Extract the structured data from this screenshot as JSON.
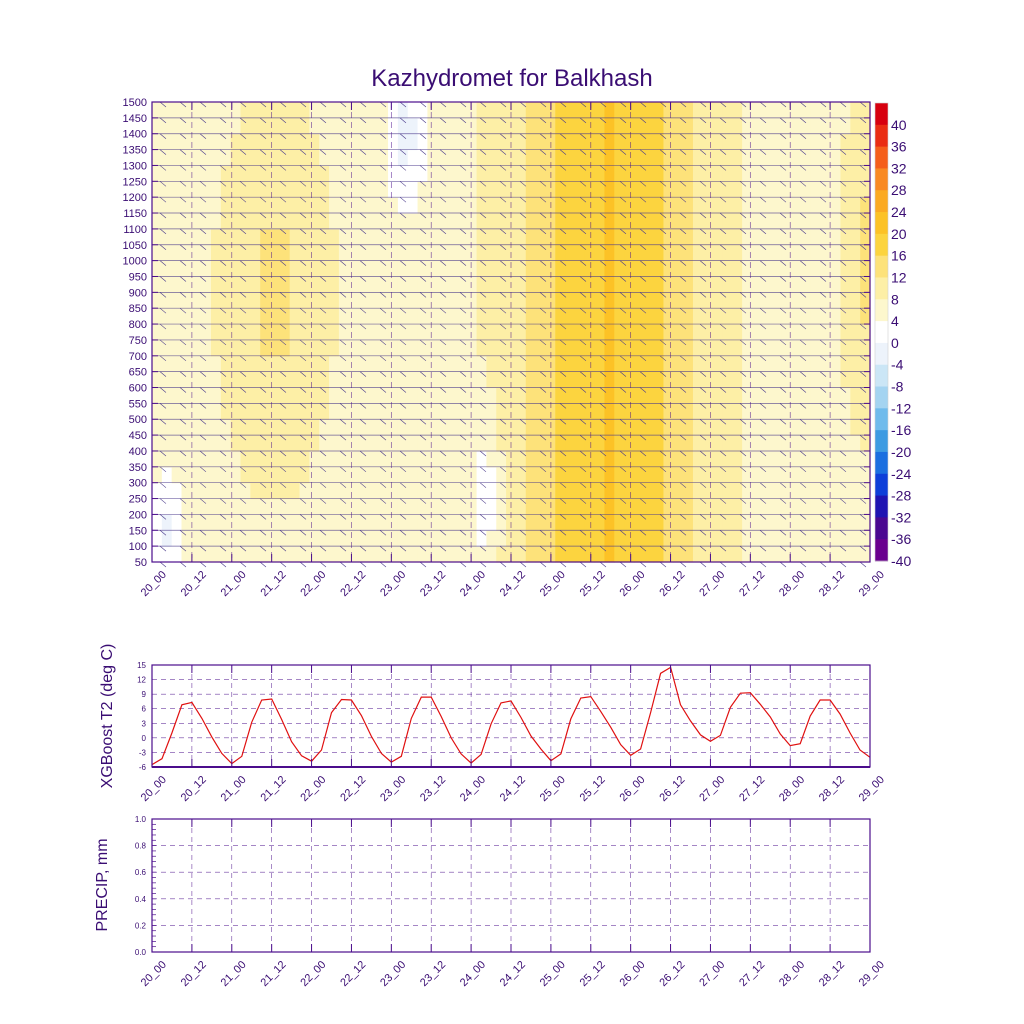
{
  "title": "Kazhydromet for Balkhash",
  "chart_data": [
    {
      "type": "heatmap",
      "name": "temperature-height-section",
      "y_ticks": [
        50,
        100,
        150,
        200,
        250,
        300,
        350,
        400,
        450,
        500,
        550,
        600,
        650,
        700,
        750,
        800,
        850,
        900,
        950,
        1000,
        1050,
        1100,
        1150,
        1200,
        1250,
        1300,
        1350,
        1400,
        1450,
        1500
      ],
      "ylim": [
        50,
        1500
      ],
      "x_ticks": [
        "20_00",
        "20_12",
        "21_00",
        "21_12",
        "22_00",
        "22_12",
        "23_00",
        "23_12",
        "24_00",
        "24_12",
        "25_00",
        "25_12",
        "26_00",
        "26_12",
        "27_00",
        "27_12",
        "28_00",
        "28_12",
        "29_00"
      ],
      "colorbar": {
        "levels": [
          "40",
          "36",
          "32",
          "28",
          "24",
          "20",
          "16",
          "12",
          "8",
          "4",
          "0",
          "-4",
          "-8",
          "-12",
          "-16",
          "-20",
          "-24",
          "-28",
          "-32",
          "-36",
          "-40"
        ],
        "colors": [
          "#d7000f",
          "#ea2d13",
          "#f55f1b",
          "#f98a23",
          "#fbaa22",
          "#fcc226",
          "#fcd43f",
          "#fde27a",
          "#fdefa6",
          "#fdf7cd",
          "#ffffff",
          "#edf3fb",
          "#cbe6f6",
          "#a4d4f1",
          "#6fbbec",
          "#3d9be2",
          "#1b6fe0",
          "#0e3fd9",
          "#1f14b2",
          "#4a0891",
          "#6a008f"
        ]
      },
      "series": [
        {
          "name": "temperature-field",
          "x": [
            0,
            3,
            6,
            9,
            12,
            15,
            18,
            21,
            24,
            27,
            30,
            33,
            36,
            39,
            42,
            45,
            48,
            51,
            54,
            57,
            60,
            63,
            66,
            69,
            72,
            75,
            78,
            81,
            84,
            87,
            90,
            93,
            96,
            99,
            102,
            105,
            108,
            111,
            114,
            117,
            120,
            123,
            126,
            129,
            132,
            135,
            138,
            141,
            144,
            147,
            150,
            153,
            156,
            159,
            162,
            165,
            168,
            171,
            174,
            177,
            180,
            183,
            186,
            189,
            192,
            195,
            198,
            201,
            204,
            207,
            210,
            213,
            216
          ],
          "surface_values": [
            -2,
            2,
            5,
            8,
            6,
            2,
            -2,
            -4,
            -3,
            1,
            6,
            9,
            7,
            3,
            -1,
            -4,
            -3,
            2,
            7,
            9,
            7,
            3,
            -1,
            -4,
            -3,
            2,
            7,
            9,
            8,
            3,
            -1,
            -4,
            -3,
            2,
            7,
            9,
            8,
            4,
            0,
            -2,
            -1,
            4,
            9,
            11,
            10,
            6,
            2,
            0,
            2,
            8,
            14,
            16,
            13,
            8,
            4,
            2,
            3,
            8,
            12,
            13,
            11,
            6,
            2,
            0,
            1,
            6,
            10,
            11,
            9,
            4,
            1,
            0,
            1
          ]
        }
      ]
    },
    {
      "type": "line",
      "name": "xgboost-t2",
      "ylabel": "XGBoost T2 (deg C)",
      "y_ticks": [
        "15",
        "12",
        "9",
        "6",
        "3",
        "0",
        "-3",
        "-6"
      ],
      "ylim": [
        -6,
        15
      ],
      "x_ticks": [
        "20_00",
        "20_12",
        "21_00",
        "21_12",
        "22_00",
        "22_12",
        "23_00",
        "23_12",
        "24_00",
        "24_12",
        "25_00",
        "25_12",
        "26_00",
        "26_12",
        "27_00",
        "27_12",
        "28_00",
        "28_12",
        "29_00"
      ],
      "series": [
        {
          "name": "T2",
          "x": [
            0,
            3,
            6,
            9,
            12,
            15,
            18,
            21,
            24,
            27,
            30,
            33,
            36,
            39,
            42,
            45,
            48,
            51,
            54,
            57,
            60,
            63,
            66,
            69,
            72,
            75,
            78,
            81,
            84,
            87,
            90,
            93,
            96,
            99,
            102,
            105,
            108,
            111,
            114,
            117,
            120,
            123,
            126,
            129,
            132,
            135,
            138,
            141,
            144,
            147,
            150,
            153,
            156,
            159,
            162,
            165,
            168,
            171,
            174,
            177,
            180,
            183,
            186,
            189,
            192,
            195,
            198,
            201,
            204,
            207,
            210,
            213,
            216
          ],
          "values": [
            -5.5,
            -4.3,
            1.0,
            6.8,
            7.3,
            4.0,
            0.2,
            -3.2,
            -5.3,
            -3.8,
            3.2,
            7.8,
            8.0,
            3.8,
            -0.8,
            -3.7,
            -4.8,
            -2.5,
            5.2,
            7.9,
            7.8,
            4.6,
            0.3,
            -3.2,
            -5.0,
            -3.8,
            4.0,
            8.4,
            8.4,
            4.4,
            0.0,
            -3.3,
            -5.2,
            -3.4,
            2.9,
            7.2,
            7.6,
            4.2,
            0.4,
            -2.3,
            -4.7,
            -3.3,
            3.9,
            8.2,
            8.5,
            5.4,
            2.2,
            -1.4,
            -3.6,
            -2.3,
            5.2,
            13.3,
            14.5,
            6.8,
            3.5,
            0.6,
            -0.7,
            0.5,
            6.3,
            9.2,
            9.3,
            6.9,
            4.3,
            0.8,
            -1.6,
            -1.2,
            4.5,
            7.8,
            7.8,
            4.9,
            1.0,
            -2.5,
            -4.0
          ]
        }
      ]
    },
    {
      "type": "line",
      "name": "precip",
      "ylabel": "PRECIP, mm",
      "y_ticks": [
        "1.0",
        "0.8",
        "0.6",
        "0.4",
        "0.2",
        "0.0"
      ],
      "ylim": [
        0.0,
        1.0
      ],
      "x_ticks": [
        "20_00",
        "20_12",
        "21_00",
        "21_12",
        "22_00",
        "22_12",
        "23_00",
        "23_12",
        "24_00",
        "24_12",
        "25_00",
        "25_12",
        "26_00",
        "26_12",
        "27_00",
        "27_12",
        "28_00",
        "28_12",
        "29_00"
      ],
      "series": [
        {
          "name": "PRECIP",
          "x": [],
          "values": []
        }
      ]
    }
  ],
  "colors": {
    "axis": "#4b0d8c",
    "text": "#3a0d73",
    "t2_line": "#e01010",
    "grid": "#4b0d8c",
    "wind": "#4b3b8c"
  }
}
